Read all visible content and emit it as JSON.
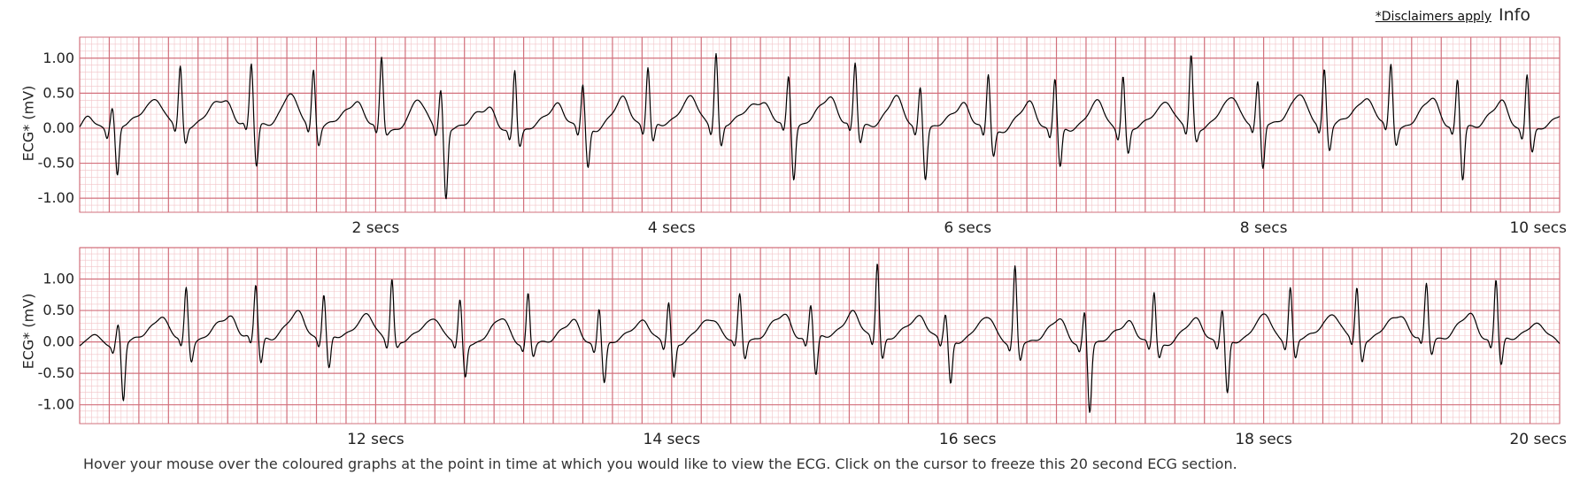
{
  "header": {
    "disclaimer_link": "*Disclaimers apply",
    "info_link": "Info"
  },
  "footer": {
    "instructions": "Hover your mouse over the coloured graphs at the point in time at which you would like to view the ECG. Click on the cursor to freeze this 20 second ECG section."
  },
  "colors": {
    "grid_minor": "#f2c4c8",
    "grid_major": "#d2707c",
    "trace": "#000000"
  },
  "chart_data": [
    {
      "type": "line",
      "ylabel": "ECG* (mV)",
      "xlim": [
        0,
        10
      ],
      "ylim": [
        -1.2,
        1.3
      ],
      "yticks": [
        1.0,
        0.5,
        0.0,
        -0.5,
        -1.0
      ],
      "ytick_labels": [
        "1.00",
        "0.50",
        "0.00",
        "-0.50",
        "-1.00"
      ],
      "xticks": [
        2,
        4,
        6,
        8,
        10
      ],
      "xtick_labels": [
        "2 secs",
        "4 secs",
        "6 secs",
        "8 secs",
        "10 secs"
      ],
      "beats": [
        {
          "t": 0.22,
          "r": 0.3,
          "s": -0.7
        },
        {
          "t": 0.68,
          "r": 0.82,
          "s": -0.25
        },
        {
          "t": 1.16,
          "r": 0.85,
          "s": -0.6
        },
        {
          "t": 1.58,
          "r": 0.8,
          "s": -0.25
        },
        {
          "t": 2.04,
          "r": 1.02,
          "s": -0.05
        },
        {
          "t": 2.44,
          "r": 0.55,
          "s": -1.0
        },
        {
          "t": 2.94,
          "r": 0.92,
          "s": -0.2
        },
        {
          "t": 3.4,
          "r": 0.65,
          "s": -0.55
        },
        {
          "t": 3.84,
          "r": 0.85,
          "s": -0.25
        },
        {
          "t": 4.3,
          "r": 1.05,
          "s": -0.3
        },
        {
          "t": 4.79,
          "r": 0.7,
          "s": -0.75
        },
        {
          "t": 5.24,
          "r": 0.88,
          "s": -0.25
        },
        {
          "t": 5.68,
          "r": 0.62,
          "s": -0.7
        },
        {
          "t": 6.14,
          "r": 0.82,
          "s": -0.35
        },
        {
          "t": 6.59,
          "r": 0.75,
          "s": -0.55
        },
        {
          "t": 7.05,
          "r": 0.8,
          "s": -0.35
        },
        {
          "t": 7.51,
          "r": 1.02,
          "s": -0.2
        },
        {
          "t": 7.96,
          "r": 0.58,
          "s": -0.65
        },
        {
          "t": 8.41,
          "r": 0.8,
          "s": -0.35
        },
        {
          "t": 8.86,
          "r": 0.85,
          "s": -0.25
        },
        {
          "t": 9.31,
          "r": 0.68,
          "s": -0.75
        },
        {
          "t": 9.78,
          "r": 0.85,
          "s": -0.3
        }
      ]
    },
    {
      "type": "line",
      "ylabel": "ECG* (mV)",
      "xlim": [
        10,
        20
      ],
      "ylim": [
        -1.3,
        1.5
      ],
      "yticks": [
        1.0,
        0.5,
        0.0,
        -0.5,
        -1.0
      ],
      "ytick_labels": [
        "1.00",
        "0.50",
        "0.00",
        "-0.50",
        "-1.00"
      ],
      "xticks": [
        12,
        14,
        16,
        18,
        20
      ],
      "xtick_labels": [
        "12 secs",
        "14 secs",
        "16 secs",
        "18 secs",
        "20 secs"
      ],
      "beats": [
        {
          "t": 10.26,
          "r": 0.3,
          "s": -0.92
        },
        {
          "t": 10.72,
          "r": 0.85,
          "s": -0.3
        },
        {
          "t": 11.19,
          "r": 0.85,
          "s": -0.4
        },
        {
          "t": 11.65,
          "r": 0.72,
          "s": -0.5
        },
        {
          "t": 12.11,
          "r": 1.0,
          "s": -0.1
        },
        {
          "t": 12.57,
          "r": 0.65,
          "s": -0.55
        },
        {
          "t": 13.03,
          "r": 0.8,
          "s": -0.2
        },
        {
          "t": 13.51,
          "r": 0.62,
          "s": -0.6
        },
        {
          "t": 13.98,
          "r": 0.65,
          "s": -0.55
        },
        {
          "t": 14.46,
          "r": 0.7,
          "s": -0.3
        },
        {
          "t": 14.94,
          "r": 0.55,
          "s": -0.6
        },
        {
          "t": 15.39,
          "r": 1.25,
          "s": -0.3
        },
        {
          "t": 15.85,
          "r": 0.4,
          "s": -0.7
        },
        {
          "t": 16.32,
          "r": 1.2,
          "s": -0.3
        },
        {
          "t": 16.79,
          "r": 0.55,
          "s": -1.05
        },
        {
          "t": 17.26,
          "r": 0.85,
          "s": -0.2
        },
        {
          "t": 17.72,
          "r": 0.5,
          "s": -0.85
        },
        {
          "t": 18.18,
          "r": 0.85,
          "s": -0.3
        },
        {
          "t": 18.63,
          "r": 0.8,
          "s": -0.35
        },
        {
          "t": 19.1,
          "r": 0.85,
          "s": -0.25
        },
        {
          "t": 19.57,
          "r": 1.0,
          "s": -0.4
        }
      ]
    }
  ]
}
